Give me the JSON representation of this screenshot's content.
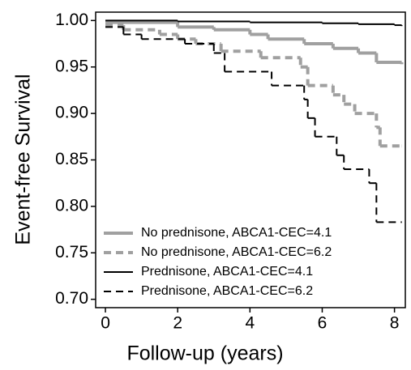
{
  "chart_data": {
    "type": "step",
    "x_label": "Follow-up (years)",
    "y_label": "Event-free Survival",
    "xlim": [
      -0.27,
      8.3
    ],
    "ylim": [
      0.691,
      1.009
    ],
    "xticks": [
      0,
      2,
      4,
      6,
      8
    ],
    "yticks": [
      {
        "value": 0.7,
        "label": "0.70"
      },
      {
        "value": 0.75,
        "label": "0.75"
      },
      {
        "value": 0.8,
        "label": "0.80"
      },
      {
        "value": 0.85,
        "label": "0.85"
      },
      {
        "value": 0.9,
        "label": "0.90"
      },
      {
        "value": 0.95,
        "label": "0.95"
      },
      {
        "value": 1.0,
        "label": "1.00"
      }
    ],
    "legend": "lower-left",
    "series": [
      {
        "name": "No prednisone, ABCA1-CEC=4.1",
        "color": "#a0a0a0",
        "line_style": "solid",
        "line_width": 4,
        "x": [
          0,
          2,
          3,
          4,
          4.5,
          5.5,
          6.3,
          7,
          7.5,
          8.2
        ],
        "values": [
          0.998,
          0.993,
          0.99,
          0.985,
          0.98,
          0.975,
          0.97,
          0.965,
          0.955,
          0.953
        ]
      },
      {
        "name": "No prednisone, ABCA1-CEC=6.2",
        "color": "#a0a0a0",
        "line_style": "dashed",
        "line_width": 4,
        "x": [
          0,
          0.5,
          1.5,
          2,
          2.5,
          3.2,
          4.3,
          5.4,
          5.6,
          6.3,
          6.6,
          6.9,
          7.5,
          7.6,
          8.2
        ],
        "values": [
          0.995,
          0.99,
          0.985,
          0.98,
          0.975,
          0.967,
          0.96,
          0.95,
          0.93,
          0.92,
          0.91,
          0.9,
          0.885,
          0.865,
          0.865
        ]
      },
      {
        "name": "Prednisone, ABCA1-CEC=4.1",
        "color": "#000000",
        "line_style": "solid",
        "line_width": 2,
        "x": [
          0,
          2,
          4,
          6,
          7,
          8,
          8.2
        ],
        "values": [
          1.0,
          0.999,
          0.998,
          0.997,
          0.996,
          0.995,
          0.994
        ]
      },
      {
        "name": "Prednisone, ABCA1-CEC=6.2",
        "color": "#000000",
        "line_style": "dashed",
        "line_width": 2,
        "x": [
          0,
          0.5,
          1,
          2.2,
          3,
          3.3,
          4.6,
          5.5,
          5.6,
          5.8,
          6.4,
          6.6,
          7.3,
          7.5,
          8.2
        ],
        "values": [
          0.993,
          0.985,
          0.98,
          0.975,
          0.965,
          0.945,
          0.93,
          0.915,
          0.895,
          0.875,
          0.855,
          0.84,
          0.825,
          0.783,
          0.783
        ]
      }
    ]
  }
}
